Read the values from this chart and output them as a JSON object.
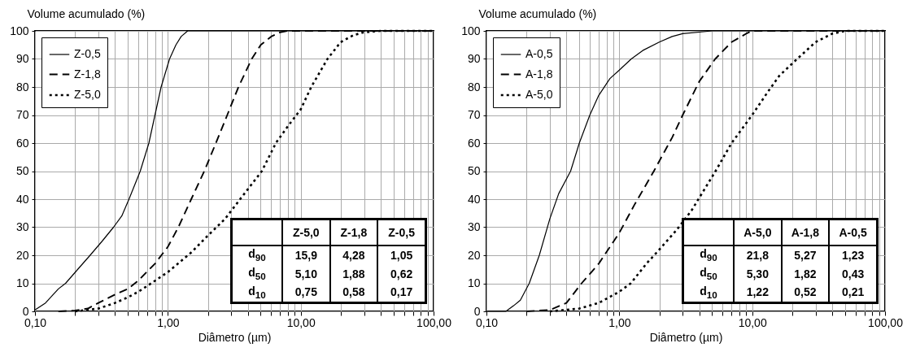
{
  "chart_data": [
    {
      "type": "line",
      "ylabel": "Volume acumulado (%)",
      "xlabel": "Diâmetro (µm)",
      "log": "x",
      "grid": true,
      "legend": "top left",
      "xlim": [
        0.1,
        100
      ],
      "ylim": [
        0,
        100
      ],
      "xticks": [
        {
          "value": 0.1,
          "label": "0,10"
        },
        {
          "value": 0.2,
          "label": null
        },
        {
          "value": 0.3,
          "label": null
        },
        {
          "value": 0.4,
          "label": null
        },
        {
          "value": 0.5,
          "label": null
        },
        {
          "value": 0.6,
          "label": null
        },
        {
          "value": 0.7,
          "label": null
        },
        {
          "value": 0.8,
          "label": null
        },
        {
          "value": 0.9,
          "label": null
        },
        {
          "value": 1,
          "label": "1,00"
        },
        {
          "value": 2,
          "label": null
        },
        {
          "value": 3,
          "label": null
        },
        {
          "value": 4,
          "label": null
        },
        {
          "value": 5,
          "label": null
        },
        {
          "value": 6,
          "label": null
        },
        {
          "value": 7,
          "label": null
        },
        {
          "value": 8,
          "label": null
        },
        {
          "value": 9,
          "label": null
        },
        {
          "value": 10,
          "label": "10,00"
        },
        {
          "value": 20,
          "label": null
        },
        {
          "value": 30,
          "label": null
        },
        {
          "value": 40,
          "label": null
        },
        {
          "value": 50,
          "label": null
        },
        {
          "value": 60,
          "label": null
        },
        {
          "value": 70,
          "label": null
        },
        {
          "value": 80,
          "label": null
        },
        {
          "value": 90,
          "label": null
        },
        {
          "value": 100,
          "label": "100,00"
        }
      ],
      "yticks": [
        0,
        10,
        20,
        30,
        40,
        50,
        60,
        70,
        80,
        90,
        100
      ],
      "series": [
        {
          "name": "Z-0,5",
          "color": "#000000",
          "line_style": "solid",
          "x": [
            0.1,
            0.12,
            0.15,
            0.17,
            0.21,
            0.26,
            0.32,
            0.39,
            0.45,
            0.51,
            0.62,
            0.72,
            0.8,
            0.89,
            1.03,
            1.15,
            1.26,
            1.41,
            100
          ],
          "values": [
            0.5,
            3,
            8,
            10,
            15,
            20,
            25,
            30,
            34,
            40,
            50,
            60,
            70,
            80,
            90,
            95,
            98,
            100,
            100
          ]
        },
        {
          "name": "Z-1,8",
          "color": "#000000",
          "line_style": "dashed",
          "x": [
            0.15,
            0.2,
            0.25,
            0.3,
            0.4,
            0.5,
            0.6,
            0.8,
            1,
            1.2,
            1.5,
            1.88,
            2.3,
            2.8,
            3.4,
            4.28,
            5,
            6,
            7,
            8,
            100
          ],
          "values": [
            0,
            0.3,
            1,
            3,
            6,
            8,
            11,
            17,
            23,
            30,
            40,
            50,
            60,
            70,
            80,
            90,
            95,
            98,
            99.5,
            100,
            100
          ]
        },
        {
          "name": "Z-5,0",
          "color": "#000000",
          "line_style": "dotted",
          "x": [
            0.2,
            0.3,
            0.4,
            0.5,
            0.6,
            0.75,
            1,
            1.5,
            2,
            2.7,
            3.5,
            5.1,
            6.5,
            8,
            10,
            12,
            15.9,
            20,
            25,
            30,
            40,
            100
          ],
          "values": [
            0,
            1,
            3,
            5,
            7,
            10,
            14,
            21,
            27,
            33,
            40,
            50,
            60,
            66,
            72,
            80,
            90,
            96,
            98.5,
            99.5,
            100,
            100
          ]
        }
      ],
      "annotations": [
        "Z-5,0",
        "Z-1,8",
        "Z-0,5",
        "d$_{90}$",
        "15,9",
        "4,28",
        "1,05",
        "d$_{50}$",
        "5,10",
        "1,88",
        "0,62",
        "d$_{10}$",
        "0,75",
        "0,58",
        "0,17"
      ]
    },
    {
      "type": "line",
      "ylabel": "Volume acumulado (%)",
      "xlabel": "Diâmetro (µm)",
      "log": "x",
      "grid": true,
      "legend": "top left",
      "xlim": [
        0.1,
        100
      ],
      "ylim": [
        0,
        100
      ],
      "xticks": [
        {
          "value": 0.1,
          "label": "0,10"
        },
        {
          "value": 0.2,
          "label": null
        },
        {
          "value": 0.3,
          "label": null
        },
        {
          "value": 0.4,
          "label": null
        },
        {
          "value": 0.5,
          "label": null
        },
        {
          "value": 0.6,
          "label": null
        },
        {
          "value": 0.7,
          "label": null
        },
        {
          "value": 0.8,
          "label": null
        },
        {
          "value": 0.9,
          "label": null
        },
        {
          "value": 1,
          "label": "1,00"
        },
        {
          "value": 2,
          "label": null
        },
        {
          "value": 3,
          "label": null
        },
        {
          "value": 4,
          "label": null
        },
        {
          "value": 5,
          "label": null
        },
        {
          "value": 6,
          "label": null
        },
        {
          "value": 7,
          "label": null
        },
        {
          "value": 8,
          "label": null
        },
        {
          "value": 9,
          "label": null
        },
        {
          "value": 10,
          "label": "10,00"
        },
        {
          "value": 20,
          "label": null
        },
        {
          "value": 30,
          "label": null
        },
        {
          "value": 40,
          "label": null
        },
        {
          "value": 50,
          "label": null
        },
        {
          "value": 60,
          "label": null
        },
        {
          "value": 70,
          "label": null
        },
        {
          "value": 80,
          "label": null
        },
        {
          "value": 90,
          "label": null
        },
        {
          "value": 100,
          "label": "100,00"
        }
      ],
      "yticks": [
        0,
        10,
        20,
        30,
        40,
        50,
        60,
        70,
        80,
        90,
        100
      ],
      "series": [
        {
          "name": "A-0,5",
          "color": "#000000",
          "line_style": "solid",
          "x": [
            0.1,
            0.14,
            0.16,
            0.18,
            0.21,
            0.25,
            0.3,
            0.35,
            0.43,
            0.5,
            0.6,
            0.7,
            0.85,
            1,
            1.23,
            1.5,
            2,
            2.5,
            3,
            5,
            100
          ],
          "values": [
            0,
            0,
            2,
            4,
            10,
            20,
            33,
            42,
            50,
            60,
            70,
            77,
            83,
            86,
            90,
            93,
            96,
            98,
            99,
            100,
            100
          ]
        },
        {
          "name": "A-1,8",
          "color": "#000000",
          "line_style": "dashed",
          "x": [
            0.2,
            0.3,
            0.4,
            0.52,
            0.7,
            1,
            1.3,
            1.82,
            2.5,
            3,
            4,
            5.27,
            7,
            9,
            10,
            100
          ],
          "values": [
            0,
            0.5,
            3,
            10,
            17,
            28,
            38,
            50,
            62,
            70,
            82,
            90,
            96,
            99,
            100,
            100
          ]
        },
        {
          "name": "A-5,0",
          "color": "#000000",
          "line_style": "dotted",
          "x": [
            0.3,
            0.5,
            0.7,
            1,
            1.22,
            1.6,
            2,
            2.7,
            3.5,
            5.3,
            7,
            10,
            13,
            16,
            21.8,
            30,
            40,
            50,
            100
          ],
          "values": [
            0,
            1,
            3,
            7,
            10,
            17,
            22,
            29,
            36,
            50,
            60,
            70,
            78,
            84,
            90,
            96,
            99,
            100,
            100
          ]
        }
      ],
      "annotations": [
        "A-5,0",
        "A-1,8",
        "A-0,5",
        "d$_{90}$",
        "21,8",
        "5,27",
        "1,23",
        "d$_{50}$",
        "5,30",
        "1,82",
        "0,43",
        "d$_{10}$",
        "1,22",
        "0,52",
        "0,21"
      ]
    }
  ]
}
